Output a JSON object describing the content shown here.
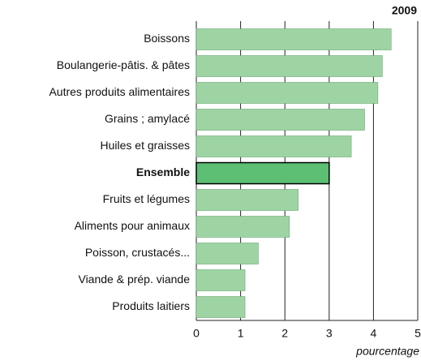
{
  "chart_data": {
    "type": "barh",
    "title": "2009",
    "x_label": "pourcentage",
    "categories": [
      "Boissons",
      "Boulangerie-pâtis. & pâtes",
      "Autres produits alimentaires",
      "Grains ; amylacé",
      "Huiles et graisses",
      "Ensemble",
      "Fruits et légumes",
      "Aliments pour animaux",
      "Poisson, crustacés...",
      "Viande & prép. viande",
      "Produits laitiers"
    ],
    "values": [
      4.4,
      4.2,
      4.1,
      3.8,
      3.5,
      3.0,
      2.3,
      2.1,
      1.4,
      1.1,
      1.1
    ],
    "color": "#9ed4a4",
    "highlight": 5,
    "highlight_color": "#5cbf74",
    "xlim": [
      0,
      5
    ],
    "xticks": [
      0,
      1,
      2,
      3,
      4,
      5
    ],
    "grid": true
  }
}
